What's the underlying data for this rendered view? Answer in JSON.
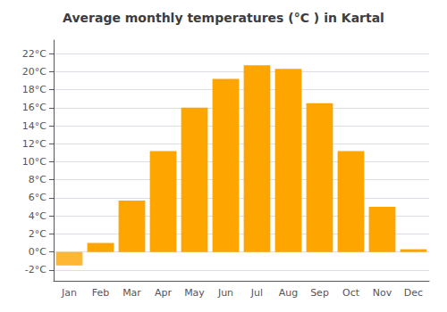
{
  "chart_data": {
    "type": "bar",
    "title": "Average monthly temperatures (°C ) in Kartal",
    "categories": [
      "Jan",
      "Feb",
      "Mar",
      "Apr",
      "May",
      "Jun",
      "Jul",
      "Aug",
      "Sep",
      "Oct",
      "Nov",
      "Dec"
    ],
    "values": [
      -1.5,
      1.0,
      5.7,
      11.2,
      16.0,
      19.2,
      20.7,
      20.3,
      16.5,
      11.2,
      5.0,
      0.3
    ],
    "colors": [
      "#FFB733",
      "#FFA500",
      "#FFA500",
      "#FFA500",
      "#FFA500",
      "#FFA500",
      "#FFA500",
      "#FFA500",
      "#FFA500",
      "#FFA500",
      "#FFA500",
      "#FFA500"
    ],
    "ylim": [
      -3.2,
      23.5
    ],
    "yticks": [
      {
        "value": -2,
        "label": "-2°C"
      },
      {
        "value": 0,
        "label": "0°C"
      },
      {
        "value": 2,
        "label": "2°C"
      },
      {
        "value": 4,
        "label": "4°C"
      },
      {
        "value": 6,
        "label": "6°C"
      },
      {
        "value": 8,
        "label": "8°C"
      },
      {
        "value": 10,
        "label": "10°C"
      },
      {
        "value": 12,
        "label": "12°C"
      },
      {
        "value": 14,
        "label": "14°C"
      },
      {
        "value": 16,
        "label": "16°C"
      },
      {
        "value": 18,
        "label": "18°C"
      },
      {
        "value": 20,
        "label": "20°C"
      },
      {
        "value": 22,
        "label": "22°C"
      }
    ],
    "grid": true
  }
}
